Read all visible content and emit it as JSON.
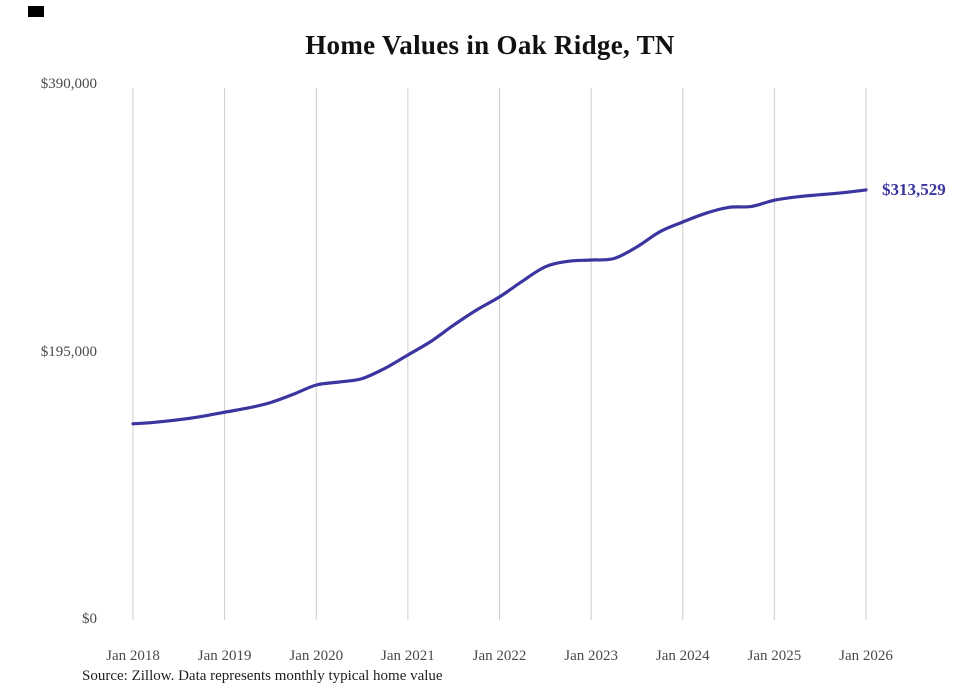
{
  "page": {
    "title": "Home Values in Oak Ridge, TN",
    "source_note": "Source: Zillow. Data represents monthly typical home value"
  },
  "chart_data": {
    "type": "line",
    "title": "Home Values in Oak Ridge, TN",
    "xlabel": "",
    "ylabel": "",
    "ylim": [
      0,
      390000
    ],
    "grid": "vertical-only",
    "legend": "none",
    "line_color": "#3b35a0",
    "grid_color": "#cccccc",
    "x_tick_labels": [
      "Jan 2018",
      "Jan 2019",
      "Jan 2020",
      "Jan 2021",
      "Jan 2022",
      "Jan 2023",
      "Jan 2024",
      "Jan 2025",
      "Jan 2026"
    ],
    "x_tick_months": [
      0,
      12,
      24,
      36,
      48,
      60,
      72,
      84,
      96
    ],
    "y_ticks": [
      {
        "label": "$0",
        "value": 0
      },
      {
        "label": "$195,000",
        "value": 195000
      },
      {
        "label": "$390,000",
        "value": 390000
      }
    ],
    "end_label": "$313,529",
    "series": [
      {
        "name": "Typical home value",
        "x_months": [
          0,
          3,
          6,
          9,
          12,
          15,
          18,
          21,
          24,
          27,
          30,
          33,
          36,
          39,
          42,
          45,
          48,
          51,
          54,
          57,
          60,
          63,
          66,
          69,
          72,
          75,
          78,
          81,
          84,
          87,
          90,
          93,
          96
        ],
        "values": [
          143000,
          144200,
          146000,
          148400,
          151500,
          154500,
          158500,
          164500,
          171300,
          173500,
          176000,
          183500,
          193200,
          203000,
          215000,
          226000,
          235500,
          247000,
          257500,
          261500,
          262400,
          263500,
          272000,
          283000,
          290100,
          296500,
          300800,
          301500,
          306000,
          308500,
          310000,
          311500,
          313529
        ]
      }
    ]
  }
}
